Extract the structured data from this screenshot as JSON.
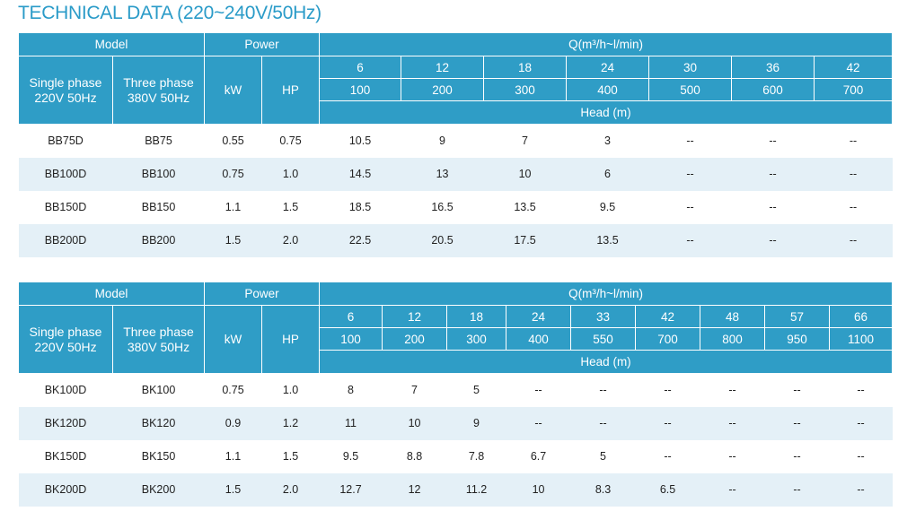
{
  "title": "TECHNICAL DATA (220~240V/50Hz)",
  "headers": {
    "model": "Model",
    "power": "Power",
    "q": "Q(m³/h~l/min)",
    "single": "Single phase 220V 50Hz",
    "three": "Three phase 380V 50Hz",
    "kw": "kW",
    "hp": "HP",
    "head": "Head (m)"
  },
  "table1": {
    "q_m3h": [
      "6",
      "12",
      "18",
      "24",
      "30",
      "36",
      "42"
    ],
    "q_lmin": [
      "100",
      "200",
      "300",
      "400",
      "500",
      "600",
      "700"
    ],
    "rows": [
      {
        "single": "BB75D",
        "three": "BB75",
        "kw": "0.55",
        "hp": "0.75",
        "head": [
          "10.5",
          "9",
          "7",
          "3",
          "--",
          "--",
          "--"
        ]
      },
      {
        "single": "BB100D",
        "three": "BB100",
        "kw": "0.75",
        "hp": "1.0",
        "head": [
          "14.5",
          "13",
          "10",
          "6",
          "--",
          "--",
          "--"
        ]
      },
      {
        "single": "BB150D",
        "three": "BB150",
        "kw": "1.1",
        "hp": "1.5",
        "head": [
          "18.5",
          "16.5",
          "13.5",
          "9.5",
          "--",
          "--",
          "--"
        ]
      },
      {
        "single": "BB200D",
        "three": "BB200",
        "kw": "1.5",
        "hp": "2.0",
        "head": [
          "22.5",
          "20.5",
          "17.5",
          "13.5",
          "--",
          "--",
          "--"
        ]
      }
    ]
  },
  "table2": {
    "q_m3h": [
      "6",
      "12",
      "18",
      "24",
      "33",
      "42",
      "48",
      "57",
      "66"
    ],
    "q_lmin": [
      "100",
      "200",
      "300",
      "400",
      "550",
      "700",
      "800",
      "950",
      "1100"
    ],
    "rows": [
      {
        "single": "BK100D",
        "three": "BK100",
        "kw": "0.75",
        "hp": "1.0",
        "head": [
          "8",
          "7",
          "5",
          "--",
          "--",
          "--",
          "--",
          "--",
          "--"
        ]
      },
      {
        "single": "BK120D",
        "three": "BK120",
        "kw": "0.9",
        "hp": "1.2",
        "head": [
          "11",
          "10",
          "9",
          "--",
          "--",
          "--",
          "--",
          "--",
          "--"
        ]
      },
      {
        "single": "BK150D",
        "three": "BK150",
        "kw": "1.1",
        "hp": "1.5",
        "head": [
          "9.5",
          "8.8",
          "7.8",
          "6.7",
          "5",
          "--",
          "--",
          "--",
          "--"
        ]
      },
      {
        "single": "BK200D",
        "three": "BK200",
        "kw": "1.5",
        "hp": "2.0",
        "head": [
          "12.7",
          "12",
          "11.2",
          "10",
          "8.3",
          "6.5",
          "--",
          "--",
          "--"
        ]
      }
    ]
  }
}
